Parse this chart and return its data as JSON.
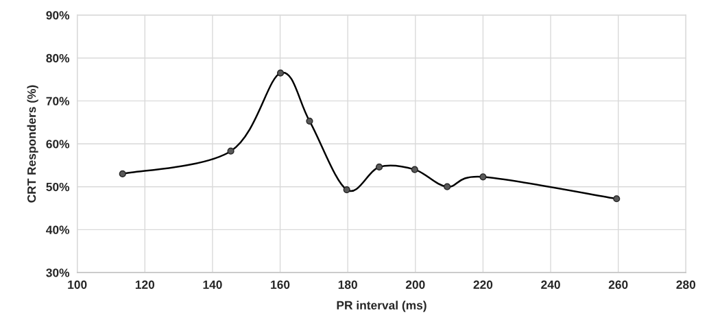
{
  "chart_data": {
    "type": "line",
    "xlabel": "PR interval (ms)",
    "ylabel": "CRT Responders (%)",
    "x": [
      113.4,
      145.4,
      160.1,
      168.7,
      179.7,
      189.3,
      199.8,
      209.4,
      220.0,
      259.5
    ],
    "series": [
      {
        "color": "#000000",
        "values": [
          53.0,
          58.3,
          76.5,
          65.3,
          49.3,
          54.6,
          54.0,
          50.0,
          52.3,
          47.2
        ]
      }
    ],
    "xlim": [
      100,
      280
    ],
    "xticks": [
      100,
      120,
      140,
      160,
      180,
      200,
      220,
      240,
      260,
      280
    ],
    "ylim": [
      30,
      90
    ],
    "yticks": [
      {
        "value": 30,
        "label": "30%"
      },
      {
        "value": 40,
        "label": "40%"
      },
      {
        "value": 50,
        "label": "50%"
      },
      {
        "value": 60,
        "label": "60%"
      },
      {
        "value": 70,
        "label": "70%"
      },
      {
        "value": 80,
        "label": "80%"
      },
      {
        "value": 90,
        "label": "90%"
      }
    ],
    "grid": true,
    "marker": "circle",
    "line_style": "solid"
  }
}
